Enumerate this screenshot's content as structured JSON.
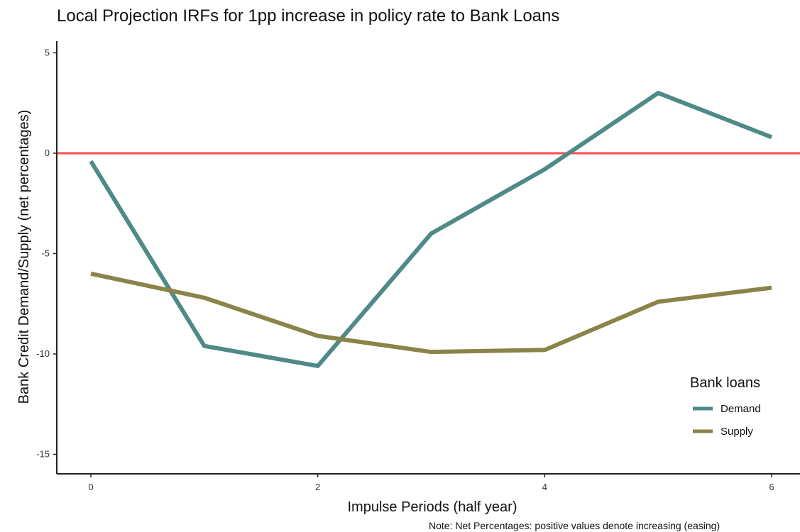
{
  "chart_data": {
    "type": "line",
    "title": "Local Projection IRFs for 1pp increase in policy rate to Bank Loans",
    "xlabel": "Impulse Periods (half year)",
    "ylabel": "Bank Credit Demand/Supply (net percentages)",
    "caption": "Note: Net Percentages: positive values denote increasing (easing)",
    "x": [
      0,
      1,
      2,
      3,
      4,
      5,
      6
    ],
    "xlim": [
      -0.3,
      6.3
    ],
    "ylim": [
      -16,
      5.5
    ],
    "x_ticks": [
      0,
      2,
      4,
      6
    ],
    "y_ticks": [
      5,
      0,
      -5,
      -10,
      -15
    ],
    "x_tick_labels": [
      "0",
      "2",
      "4",
      "6"
    ],
    "y_tick_labels": [
      "5",
      "0",
      "-5",
      "-10",
      "-15"
    ],
    "reference_line": {
      "y": 0,
      "color": "#ff4d4d"
    },
    "legend": {
      "title": "Bank loans",
      "position": "bottom-right"
    },
    "series": [
      {
        "name": "Demand",
        "color": "#4e8a88",
        "values": [
          -0.4,
          -9.6,
          -10.6,
          -4.0,
          -0.8,
          3.0,
          0.8
        ]
      },
      {
        "name": "Supply",
        "color": "#8b8449",
        "values": [
          -6.0,
          -7.2,
          -9.1,
          -9.9,
          -9.8,
          -7.4,
          -6.7
        ]
      }
    ],
    "grid": false
  }
}
